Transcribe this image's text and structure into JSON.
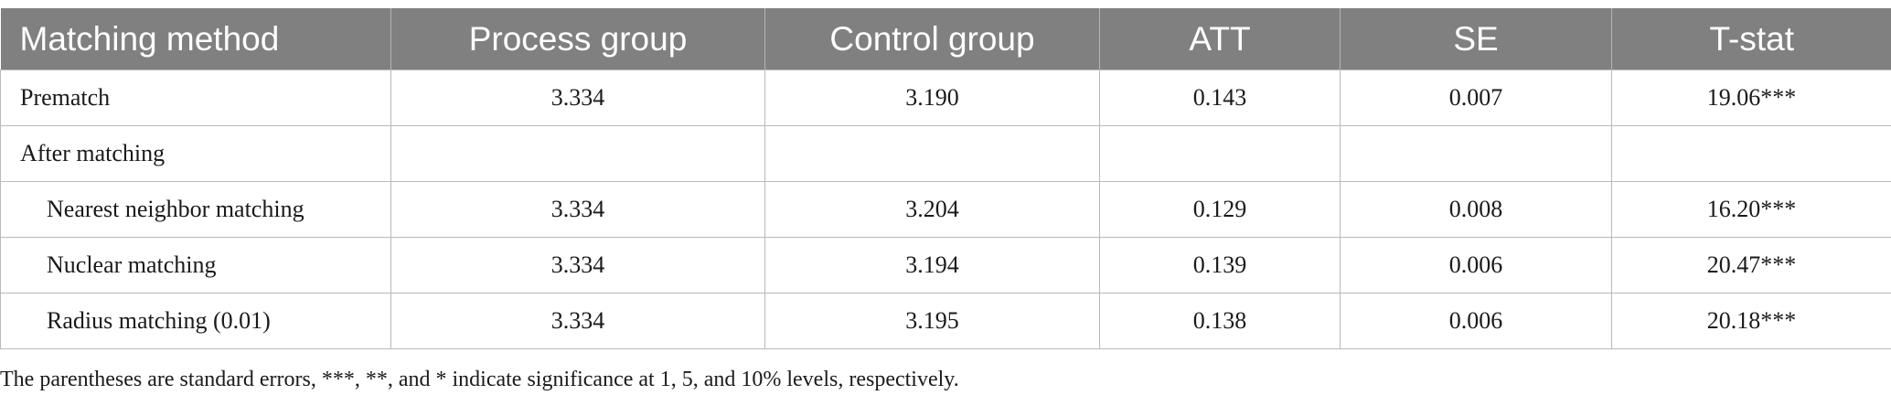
{
  "table": {
    "headers": [
      "Matching method",
      "Process group",
      "Control group",
      "ATT",
      "SE",
      "T-stat"
    ],
    "rows": [
      {
        "method": "Prematch",
        "process": "3.334",
        "control": "3.190",
        "att": "0.143",
        "se": "0.007",
        "tstat": "19.06***"
      },
      {
        "method": "After matching",
        "process": "",
        "control": "",
        "att": "",
        "se": "",
        "tstat": ""
      },
      {
        "method": "Nearest neighbor matching",
        "process": "3.334",
        "control": "3.204",
        "att": "0.129",
        "se": "0.008",
        "tstat": "16.20***"
      },
      {
        "method": "Nuclear matching",
        "process": "3.334",
        "control": "3.194",
        "att": "0.139",
        "se": "0.006",
        "tstat": "20.47***"
      },
      {
        "method": "Radius matching (0.01)",
        "process": "3.334",
        "control": "3.195",
        "att": "0.138",
        "se": "0.006",
        "tstat": "20.18***"
      }
    ]
  },
  "footnote": "The parentheses are standard errors, ***, **, and * indicate significance at 1, 5, and 10% levels, respectively.",
  "colors": {
    "header_bg": "#808080",
    "header_text": "#ffffff",
    "grid": "#b9b9b9"
  }
}
